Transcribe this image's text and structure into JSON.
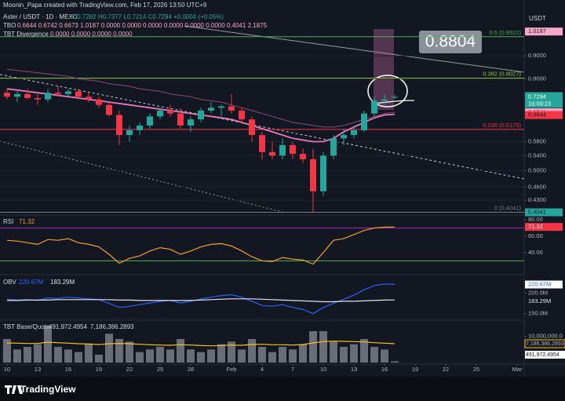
{
  "header": {
    "credit": "Moonin_Papa created with TradingView.com, Feb 17, 2026 13:50 UTC+9",
    "symbol": "Aster / USDT · 1D · MEXC",
    "ohlc": "O0.7282 H0.7377 L0.7214 C0.7294 +0.0004 (+0.05%)",
    "tbo_name": "TBO",
    "tbo_values": "0.6644 0.6742 0.6673 1.0187 0.0000 0.0000 0.0000 0.0000 0.0000 0.0000 0.4041 2.1875",
    "div_name": "TBT Divergence",
    "div_values": "0.0000 0.0000 0.0000 0.0000",
    "currency": "USDT",
    "brand": "TradingView"
  },
  "chart_data": [
    {
      "type": "candlestick",
      "log_scale": true,
      "ylim": [
        0.405,
        1.15
      ],
      "xlim": [
        -0.69,
        50.69
      ],
      "up_color": "#26a69a",
      "down_color": "#f23645",
      "x": [
        0,
        1,
        2,
        3,
        4,
        5,
        6,
        7,
        8,
        9,
        10,
        11,
        12,
        13,
        14,
        15,
        16,
        17,
        18,
        19,
        20,
        21,
        22,
        23,
        24,
        25,
        26,
        27,
        28,
        29,
        30,
        31,
        32,
        33,
        34,
        35,
        36,
        37,
        38
      ],
      "open": [
        0.745,
        0.73,
        0.74,
        0.725,
        0.72,
        0.745,
        0.74,
        0.75,
        0.73,
        0.72,
        0.7,
        0.665,
        0.6,
        0.615,
        0.63,
        0.66,
        0.68,
        0.67,
        0.63,
        0.65,
        0.68,
        0.69,
        0.695,
        0.68,
        0.65,
        0.6,
        0.55,
        0.54,
        0.57,
        0.545,
        0.53,
        0.45,
        0.54,
        0.59,
        0.6,
        0.615,
        0.67,
        0.715,
        0.7282
      ],
      "high": [
        0.76,
        0.75,
        0.76,
        0.74,
        0.76,
        0.77,
        0.76,
        0.76,
        0.75,
        0.73,
        0.71,
        0.68,
        0.63,
        0.64,
        0.67,
        0.69,
        0.7,
        0.69,
        0.66,
        0.69,
        0.71,
        0.7,
        0.74,
        0.69,
        0.66,
        0.61,
        0.58,
        0.59,
        0.58,
        0.56,
        0.56,
        0.55,
        0.6,
        0.62,
        0.63,
        0.68,
        0.73,
        0.74,
        0.7377
      ],
      "low": [
        0.72,
        0.71,
        0.72,
        0.7,
        0.71,
        0.73,
        0.73,
        0.72,
        0.71,
        0.69,
        0.66,
        0.57,
        0.58,
        0.6,
        0.62,
        0.65,
        0.66,
        0.62,
        0.61,
        0.64,
        0.67,
        0.66,
        0.67,
        0.64,
        0.58,
        0.53,
        0.53,
        0.53,
        0.53,
        0.52,
        0.4041,
        0.44,
        0.53,
        0.57,
        0.59,
        0.61,
        0.66,
        0.7,
        0.7214
      ],
      "close": [
        0.73,
        0.74,
        0.725,
        0.72,
        0.745,
        0.74,
        0.75,
        0.73,
        0.72,
        0.7,
        0.665,
        0.6,
        0.615,
        0.63,
        0.66,
        0.68,
        0.67,
        0.63,
        0.65,
        0.68,
        0.69,
        0.695,
        0.68,
        0.65,
        0.6,
        0.55,
        0.54,
        0.57,
        0.545,
        0.53,
        0.45,
        0.54,
        0.59,
        0.6,
        0.615,
        0.67,
        0.715,
        0.72,
        0.7294
      ],
      "overlays": [
        {
          "color": "#e879c0",
          "values": [
            0.76,
            0.755,
            0.75,
            0.745,
            0.74,
            0.735,
            0.73,
            0.725,
            0.72,
            0.715,
            0.71,
            0.705,
            0.7,
            0.695,
            0.69,
            0.685,
            0.68,
            0.675,
            0.67,
            0.665,
            0.66,
            0.655,
            0.65,
            0.64,
            0.63,
            0.62,
            0.61,
            0.6,
            0.59,
            0.585,
            0.58,
            0.58,
            0.59,
            0.61,
            0.625,
            0.64,
            0.655,
            0.665,
            0.6673
          ]
        },
        {
          "color": "#8e4a78",
          "values": [
            0.84,
            0.835,
            0.83,
            0.825,
            0.82,
            0.815,
            0.81,
            0.8,
            0.795,
            0.79,
            0.78,
            0.775,
            0.77,
            0.76,
            0.755,
            0.75,
            0.74,
            0.735,
            0.73,
            0.72,
            0.715,
            0.71,
            0.7,
            0.69,
            0.68,
            0.67,
            0.66,
            0.65,
            0.64,
            0.635,
            0.63,
            0.625,
            0.625,
            0.63,
            0.64,
            0.65,
            0.66,
            0.67,
            0.6742
          ]
        }
      ],
      "yticks": [
        {
          "value": 0.9,
          "label": "0.9000"
        },
        {
          "value": 0.8,
          "label": "0.8000"
        },
        {
          "value": 0.58,
          "label": "0.5800"
        },
        {
          "value": 0.54,
          "label": "0.5400"
        },
        {
          "value": 0.5,
          "label": "0.5000"
        },
        {
          "value": 0.46,
          "label": "0.4600"
        },
        {
          "value": 0.43,
          "label": "0.4300"
        }
      ],
      "xticks": [
        {
          "value": 0,
          "label": "10"
        },
        {
          "value": 3,
          "label": "13"
        },
        {
          "value": 6,
          "label": "16"
        },
        {
          "value": 9,
          "label": "19"
        },
        {
          "value": 12,
          "label": "22"
        },
        {
          "value": 15,
          "label": "25"
        },
        {
          "value": 18,
          "label": "28"
        },
        {
          "value": 22,
          "label": "Feb"
        },
        {
          "value": 25,
          "label": "4"
        },
        {
          "value": 28,
          "label": "7"
        },
        {
          "value": 31,
          "label": "10"
        },
        {
          "value": 34,
          "label": "13"
        },
        {
          "value": 37,
          "label": "16"
        },
        {
          "value": 40,
          "label": "19"
        },
        {
          "value": 43,
          "label": "22"
        },
        {
          "value": 46,
          "label": "25"
        },
        {
          "value": 50,
          "label": "Mar"
        }
      ],
      "levels": [
        {
          "value": 0.9922,
          "label": "0.5 (0.9922)",
          "color": "#4caf50"
        },
        {
          "value": 0.8027,
          "label": "0.382 (0.8027)",
          "color": "#8bc34a"
        },
        {
          "value": 0.6175,
          "label": "0.236 (0.6175)",
          "color": "#f23645"
        },
        {
          "value": 0.4041,
          "label": "0 (0.4041)",
          "color": "#787b86"
        }
      ],
      "price_labels": [
        {
          "value": 1.0187,
          "label": "1.0187",
          "color": "#f7a8c8"
        },
        {
          "value": 0.6742,
          "label": "0.6742",
          "color": "#f7a8c8"
        },
        {
          "value": 0.6673,
          "label": "0.6673",
          "color": "#f48fb1"
        },
        {
          "value": 0.6644,
          "label": "0.6644",
          "color": "#f23645"
        },
        {
          "value": 0.4041,
          "label": "0.4041",
          "color": "#26a69a"
        }
      ],
      "last_price": {
        "value": 0.7294,
        "label": "0.7294",
        "countdown": "19:09:23",
        "color": "#26a69a"
      },
      "annotation": "0.8804"
    },
    {
      "type": "line",
      "title": "RSI",
      "ylim": [
        15,
        82
      ],
      "color": "#f0a030",
      "values": [
        55,
        54,
        52,
        50,
        56,
        55,
        57,
        52,
        50,
        47,
        38,
        27,
        33,
        36,
        42,
        46,
        44,
        38,
        42,
        47,
        50,
        51,
        48,
        42,
        35,
        30,
        29,
        34,
        32,
        31,
        26,
        40,
        55,
        57,
        62,
        67,
        70,
        71,
        71.32
      ],
      "yticks": [
        {
          "value": 80,
          "label": "80.00"
        },
        {
          "value": 60,
          "label": "60.00"
        },
        {
          "value": 40,
          "label": "40.00"
        }
      ],
      "bands": [
        {
          "value": 70,
          "color": "#9c27b0"
        },
        {
          "value": 30,
          "color": "#4caf50"
        }
      ]
    },
    {
      "type": "line",
      "title": "OBV",
      "ylim": [
        140,
        235
      ],
      "series": [
        {
          "color": "#2962ff",
          "last_label": "220.67M",
          "values": [
            185,
            183,
            184,
            182,
            188,
            187,
            190,
            188,
            186,
            184,
            175,
            165,
            168,
            172,
            176,
            180,
            182,
            176,
            180,
            186,
            190,
            194,
            196,
            190,
            180,
            170,
            168,
            172,
            165,
            160,
            150,
            165,
            175,
            185,
            195,
            208,
            218,
            222,
            220.67
          ]
        },
        {
          "color": "#e0e3eb",
          "last_label": "183.29M",
          "values": [
            182,
            182,
            183,
            183,
            183,
            184,
            184,
            184,
            184,
            184,
            184,
            183,
            183,
            182,
            182,
            182,
            182,
            182,
            182,
            183,
            184,
            185,
            186,
            186,
            186,
            185,
            184,
            183,
            182,
            181,
            180,
            179,
            179,
            180,
            180,
            181,
            182,
            183,
            183.29
          ]
        }
      ],
      "yticks": [
        {
          "value": 200,
          "label": "200.0M"
        },
        {
          "value": 150,
          "label": "150.0M"
        }
      ]
    },
    {
      "type": "bar",
      "title": "TBT Base/Quote",
      "ylim": [
        0,
        15000000
      ],
      "color": "#b2b5be",
      "values": [
        9000000,
        5000000,
        6000000,
        7000000,
        14000000,
        6000000,
        5000000,
        4000000,
        7000000,
        3000000,
        11000000,
        9000000,
        8000000,
        4000000,
        5000000,
        6000000,
        5000000,
        9000000,
        5000000,
        4000000,
        5000000,
        7000000,
        8000000,
        5000000,
        9000000,
        6000000,
        4000000,
        6000000,
        5000000,
        7000000,
        12000000,
        12000000,
        8000000,
        6000000,
        7000000,
        9000000,
        6000000,
        5000000,
        491972.4954
      ],
      "value_labels_last": "491,972.4954",
      "ma": {
        "color": "#f5c518",
        "last_label": "7,186,386.2893",
        "values": [
          7500000,
          7400000,
          7300000,
          7300000,
          7800000,
          7600000,
          7400000,
          7200000,
          7100000,
          6900000,
          7200000,
          7300000,
          7200000,
          7000000,
          6800000,
          6700000,
          6600000,
          6800000,
          6700000,
          6500000,
          6400000,
          6500000,
          6700000,
          6600000,
          6900000,
          7000000,
          6800000,
          6800000,
          6700000,
          6900000,
          7500000,
          8000000,
          8200000,
          8100000,
          8000000,
          7900000,
          7600000,
          7400000,
          7186386.2893
        ]
      },
      "yticks": [
        {
          "value": 10000000,
          "label": "10,000,000.0"
        }
      ]
    }
  ]
}
